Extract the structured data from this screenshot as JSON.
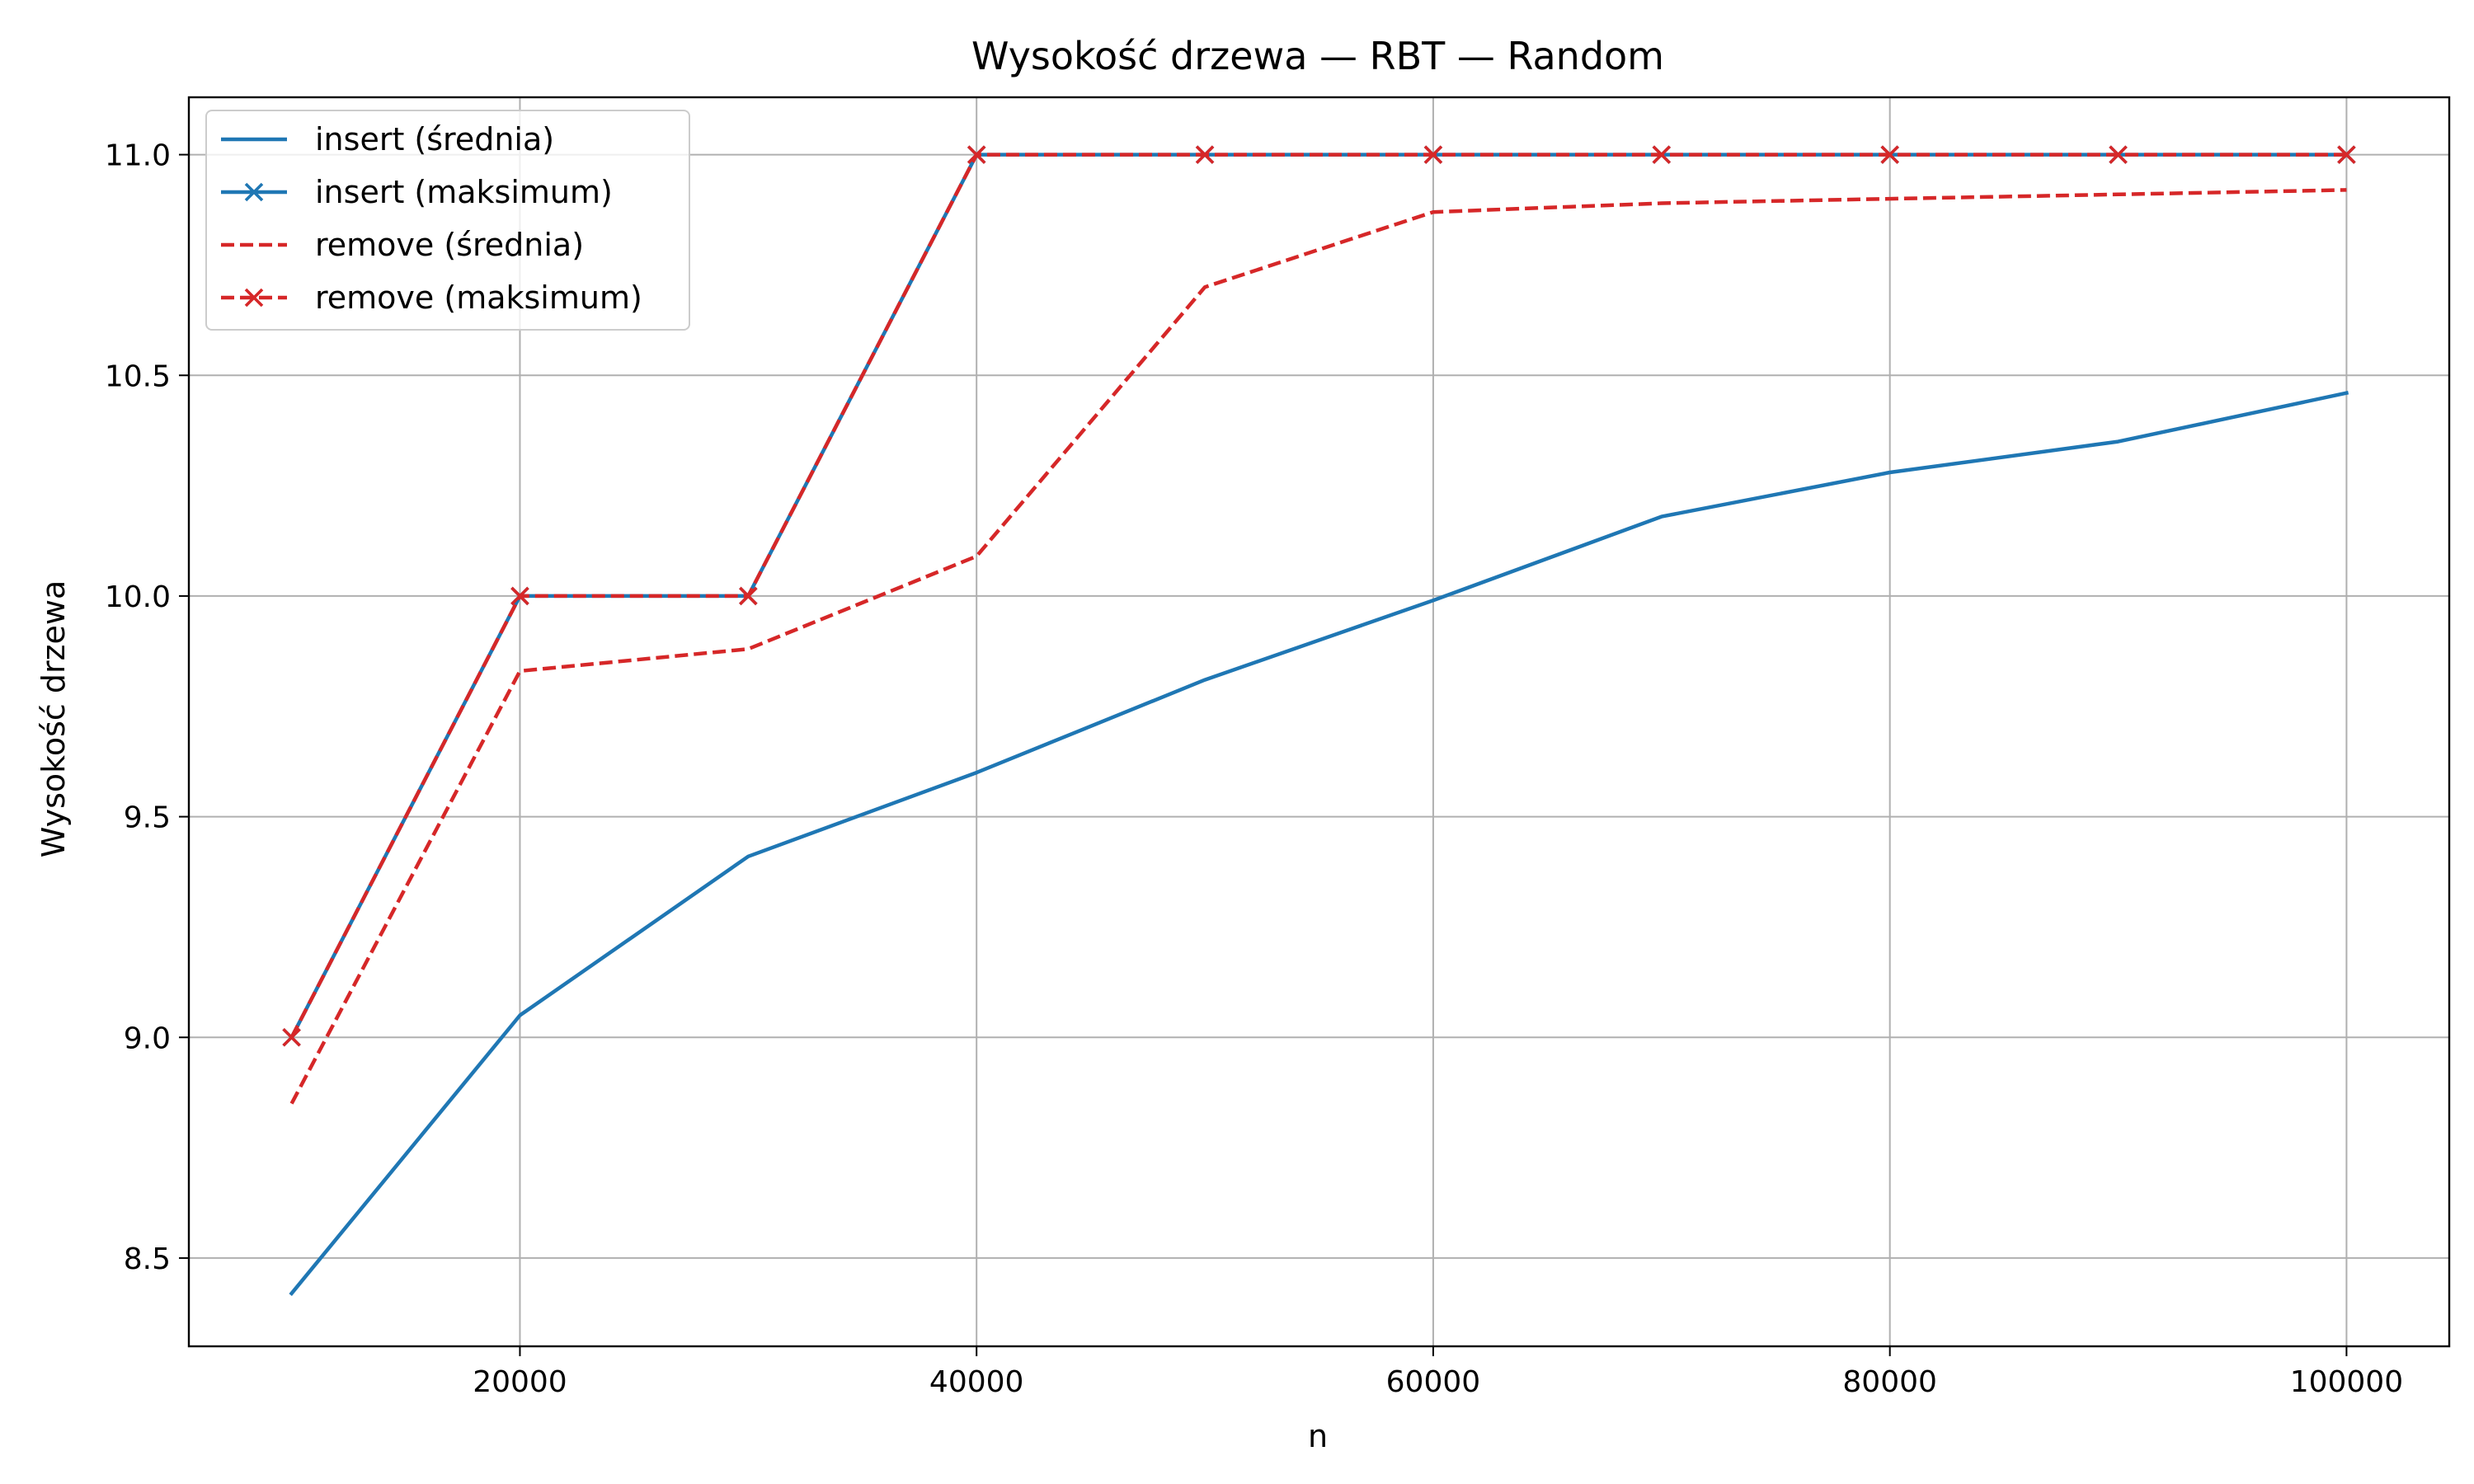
{
  "chart_data": {
    "type": "line",
    "title": "Wysokość drzewa — RBT — Random",
    "xlabel": "n",
    "ylabel": "Wysokość drzewa",
    "x": [
      10000,
      20000,
      30000,
      40000,
      50000,
      60000,
      70000,
      80000,
      90000,
      100000
    ],
    "xlim": [
      5500,
      104500
    ],
    "ylim": [
      8.3,
      11.13
    ],
    "xticks": [
      20000,
      40000,
      60000,
      80000,
      100000
    ],
    "xtick_labels": [
      "20000",
      "40000",
      "60000",
      "80000",
      "100000"
    ],
    "yticks": [
      8.5,
      9.0,
      9.5,
      10.0,
      10.5,
      11.0
    ],
    "ytick_labels": [
      "8.5",
      "9.0",
      "9.5",
      "10.0",
      "10.5",
      "11.0"
    ],
    "grid": true,
    "legend_position": "top-left",
    "series": [
      {
        "name": "insert (średnia)",
        "color": "#1f77b4",
        "dash": "solid",
        "marker": "none",
        "values": [
          8.42,
          9.05,
          9.41,
          9.6,
          9.81,
          9.99,
          10.18,
          10.28,
          10.35,
          10.46
        ]
      },
      {
        "name": "insert (maksimum)",
        "color": "#1f77b4",
        "dash": "solid",
        "marker": "x",
        "values": [
          9,
          10,
          10,
          11,
          11,
          11,
          11,
          11,
          11,
          11
        ]
      },
      {
        "name": "remove (średnia)",
        "color": "#d62728",
        "dash": "dashed",
        "marker": "none",
        "values": [
          8.85,
          9.83,
          9.88,
          10.09,
          10.7,
          10.87,
          10.89,
          10.9,
          10.91,
          10.92
        ]
      },
      {
        "name": "remove (maksimum)",
        "color": "#d62728",
        "dash": "dashed",
        "marker": "x",
        "values": [
          9,
          10,
          10,
          11,
          11,
          11,
          11,
          11,
          11,
          11
        ]
      }
    ]
  }
}
